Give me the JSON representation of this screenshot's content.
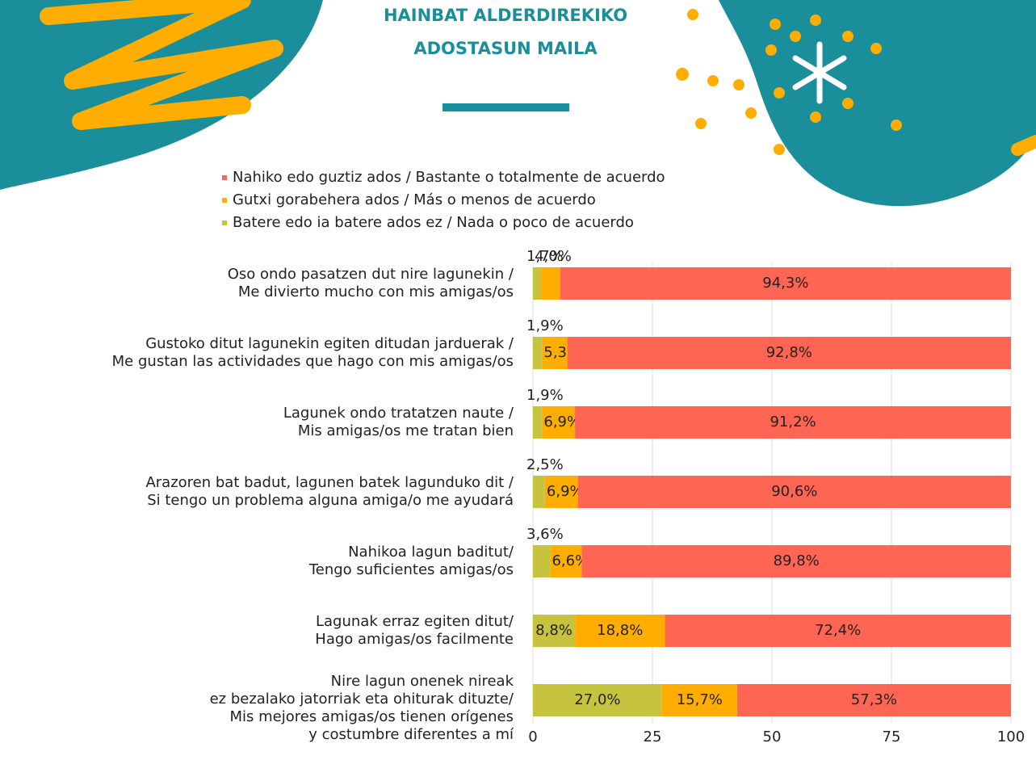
{
  "chart_data": {
    "type": "stacked-barh",
    "title": [
      "HAINBAT ALDERDIREKIKO",
      "ADOSTASUN MAILA"
    ],
    "categories": [
      [
        "Oso ondo pasatzen dut nire lagunekin /",
        "Me divierto mucho con mis amigas/os"
      ],
      [
        "Gustoko ditut lagunekin egiten ditudan jarduerak /",
        "Me gustan las actividades que hago con mis amigas/os"
      ],
      [
        "Lagunek ondo tratatzen naute /",
        "Mis amigas/os me tratan bien"
      ],
      [
        "Arazoren bat badut, lagunen batek lagunduko dit /",
        "Si tengo un problema alguna amiga/o me ayudará"
      ],
      [
        "Nahikoa lagun baditut/",
        "Tengo suficientes amigas/os"
      ],
      [
        "Lagunak erraz egiten ditut/",
        "Hago amigas/os facilmente"
      ],
      [
        "Nire lagun onenek nireak",
        "ez bezalako jatorriak eta ohiturak dituzte/",
        "Mis mejores amigas/os tienen orígenes",
        "y costumbre diferentes a mí"
      ]
    ],
    "series": [
      {
        "name": "Nahiko edo guztiz ados / Bastante o totalmente de acuerdo",
        "color": "#fe6552",
        "values": [
          94.3,
          92.8,
          91.2,
          90.6,
          89.8,
          72.4,
          57.3
        ],
        "value_labels": [
          "94,3%",
          "92,8%",
          "91,2%",
          "90,6%",
          "89,8%",
          "72,4%",
          "57,3%"
        ]
      },
      {
        "name": "Gutxi gorabehera ados / Más o menos de acuerdo",
        "color": "#ffad00",
        "values": [
          4.0,
          5.3,
          6.9,
          6.9,
          6.6,
          18.8,
          15.7
        ],
        "value_labels": [
          "4,0%",
          "5,3%",
          "6,9%",
          "6,9%",
          "6,6%",
          "18,8%",
          "15,7%"
        ]
      },
      {
        "name": "Batere edo ia batere ados ez / Nada o poco de acuerdo",
        "color": "#c6c43e",
        "values": [
          1.7,
          1.9,
          1.9,
          2.5,
          3.6,
          8.8,
          27.0
        ],
        "value_labels": [
          "1,7%",
          "1,9%",
          "1,9%",
          "2,5%",
          "3,6%",
          "8,8%",
          "27,0%"
        ]
      }
    ],
    "xlim": [
      0,
      100
    ],
    "xticks": [
      0,
      25,
      50,
      75,
      100
    ],
    "grid": true
  }
}
